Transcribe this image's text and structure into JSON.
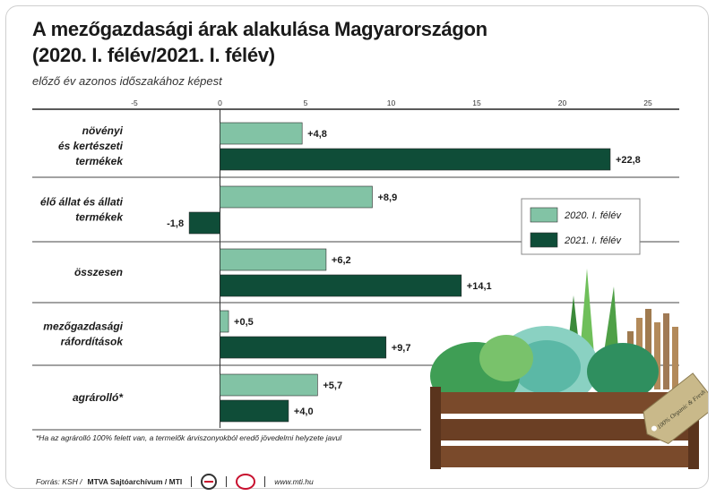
{
  "header": {
    "title_line1": "A mezőgazdasági árak alakulása Magyarországon",
    "title_line2": "(2020. I. félév/2021. I. félév)",
    "subtitle": "előző év azonos időszakához képest"
  },
  "chart_data": {
    "type": "bar",
    "orientation": "horizontal",
    "categories": [
      [
        "növényi",
        "és kertészeti",
        "termékek"
      ],
      [
        "élő állat és állati",
        "termékek"
      ],
      [
        "összesen"
      ],
      [
        "mezőgazdasági",
        "ráfordítások"
      ],
      [
        "agrárolló*"
      ]
    ],
    "series": [
      {
        "name": "2020. I. félév",
        "values": [
          4.8,
          8.9,
          6.2,
          0.5,
          5.7
        ],
        "labels": [
          "+4,8",
          "+8,9",
          "+6,2",
          "+0,5",
          "+5,7"
        ],
        "color": "#82c3a5"
      },
      {
        "name": "2021. I. félév",
        "values": [
          22.8,
          -1.8,
          14.1,
          9.7,
          4.0
        ],
        "labels": [
          "+22,8",
          "-1,8",
          "+14,1",
          "+9,7",
          "+4,0"
        ],
        "color": "#0f4d38"
      }
    ],
    "xlim": [
      -5,
      25
    ],
    "xticks": [
      -5,
      0,
      5,
      10,
      15,
      20,
      25
    ],
    "xtick_labels": [
      "-5",
      "0",
      "5",
      "10",
      "15",
      "20",
      "25"
    ],
    "legend_position": "right",
    "grid": false
  },
  "decoration": {
    "tag_text": "100% Organic & Fresh"
  },
  "colors": {
    "light_bar": "#82c3a5",
    "dark_bar": "#0f4d38",
    "crate": "#7a4a2b",
    "tag": "#c9b98a"
  },
  "footnote": "*Ha az agrárolló 100% felett van, a termelők árviszonyokból eredő jövedelmi helyzete javul",
  "footer": {
    "source_label": "Forrás: KSH /",
    "archive": "MTVA Sajtóarchívum / MTI",
    "url": "www.mti.hu"
  }
}
